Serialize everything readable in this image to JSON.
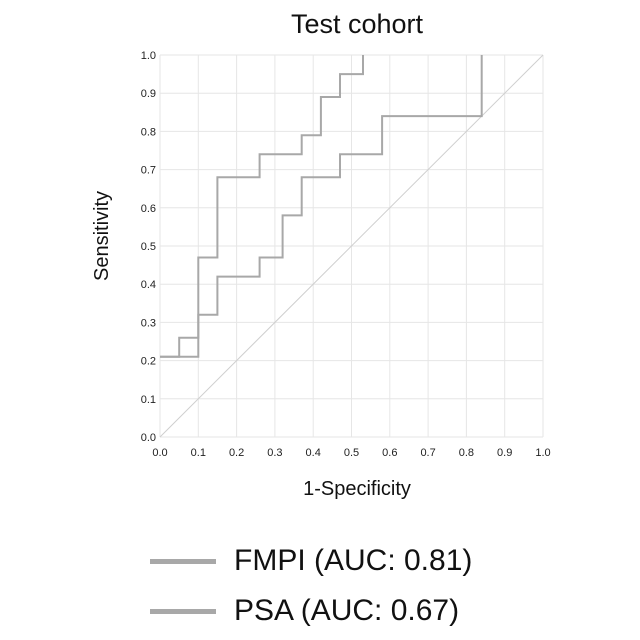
{
  "chart_data": {
    "type": "line",
    "title": "Test cohort",
    "xlabel": "1-Specificity",
    "ylabel": "Sensitivity",
    "xlim": [
      0.0,
      1.0
    ],
    "ylim": [
      0.0,
      1.0
    ],
    "xticks": [
      "0.0",
      "0.1",
      "0.2",
      "0.3",
      "0.4",
      "0.5",
      "0.6",
      "0.7",
      "0.8",
      "0.9",
      "1.0"
    ],
    "yticks": [
      "0.0",
      "0.1",
      "0.2",
      "0.3",
      "0.4",
      "0.5",
      "0.6",
      "0.7",
      "0.8",
      "0.9",
      "1.0"
    ],
    "grid": true,
    "legend_position": "bottom",
    "diagonal_reference": true,
    "series": [
      {
        "name": "FMPI (AUC: 0.81)",
        "color": "#a8a8a8",
        "x": [
          0.0,
          0.05,
          0.05,
          0.1,
          0.1,
          0.15,
          0.15,
          0.26,
          0.26,
          0.37,
          0.37,
          0.42,
          0.42,
          0.47,
          0.47,
          0.53,
          0.53
        ],
        "y": [
          0.21,
          0.21,
          0.26,
          0.26,
          0.47,
          0.47,
          0.68,
          0.68,
          0.74,
          0.74,
          0.79,
          0.79,
          0.89,
          0.89,
          0.95,
          0.95,
          1.0
        ]
      },
      {
        "name": "PSA (AUC: 0.67)",
        "color": "#a8a8a8",
        "x": [
          0.0,
          0.1,
          0.1,
          0.15,
          0.15,
          0.26,
          0.26,
          0.32,
          0.32,
          0.37,
          0.37,
          0.47,
          0.47,
          0.58,
          0.58,
          0.84,
          0.84
        ],
        "y": [
          0.21,
          0.21,
          0.32,
          0.32,
          0.42,
          0.42,
          0.47,
          0.47,
          0.58,
          0.58,
          0.68,
          0.68,
          0.74,
          0.74,
          0.84,
          0.84,
          1.0
        ]
      }
    ]
  },
  "legend": {
    "items": [
      {
        "label": "FMPI (AUC: 0.81)"
      },
      {
        "label": "PSA (AUC: 0.67)"
      }
    ]
  }
}
